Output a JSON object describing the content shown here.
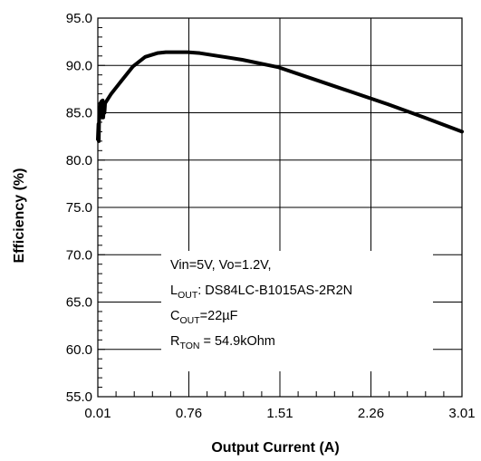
{
  "chart_data": {
    "type": "line",
    "title": "",
    "xlabel": "Output Current (A)",
    "ylabel": "Efficiency (%)",
    "xlim": [
      0.01,
      3.01
    ],
    "ylim": [
      55.0,
      95.0
    ],
    "x_ticks": [
      "0.01",
      "0.76",
      "1.51",
      "2.26",
      "3.01"
    ],
    "y_ticks": [
      "55.0",
      "60.0",
      "65.0",
      "70.0",
      "75.0",
      "80.0",
      "85.0",
      "90.0",
      "95.0"
    ],
    "grid": true,
    "x": [
      0.01,
      0.015,
      0.018,
      0.022,
      0.026,
      0.03,
      0.034,
      0.04,
      0.045,
      0.05,
      0.055,
      0.06,
      0.065,
      0.07,
      0.08,
      0.12,
      0.2,
      0.3,
      0.4,
      0.5,
      0.57,
      0.65,
      0.75,
      0.85,
      1.0,
      1.2,
      1.5,
      1.8,
      2.1,
      2.4,
      2.7,
      3.01
    ],
    "y": [
      82.2,
      83.8,
      82.0,
      85.5,
      84.6,
      86.0,
      85.8,
      86.2,
      84.5,
      86.3,
      84.5,
      86.0,
      85.0,
      86.0,
      86.2,
      87.0,
      88.3,
      89.9,
      90.9,
      91.3,
      91.4,
      91.4,
      91.4,
      91.3,
      91.0,
      90.6,
      89.8,
      88.5,
      87.2,
      85.9,
      84.5,
      83.0
    ],
    "annotations": {
      "line1": "Vin=5V, Vo=1.2V,",
      "line2_main": "L",
      "line2_sub": "OUT",
      "line2_rest": ": DS84LC-B1015AS-2R2N",
      "line3_main": "C",
      "line3_sub": "OUT",
      "line3_rest": "=22µF",
      "line4_main": "R",
      "line4_sub": "TON",
      "line4_rest": " = 54.9kOhm"
    }
  }
}
